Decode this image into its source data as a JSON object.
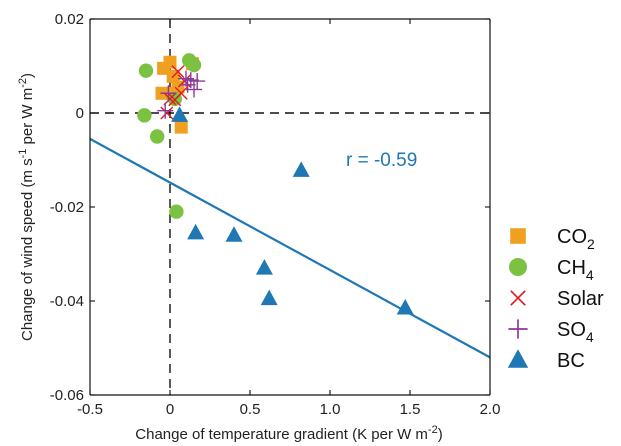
{
  "chart_data": {
    "type": "scatter",
    "xlabel": "Change of temperature gradient (K per W m",
    "xlabel_sup": "-2",
    "xlabel_end": ")",
    "ylabel": "Change of wind speed (m s",
    "ylabel_sup1": "-1",
    "ylabel_mid": " per W m",
    "ylabel_sup2": "-2",
    "ylabel_end": ")",
    "xlim": [
      -0.5,
      2.0
    ],
    "ylim": [
      -0.06,
      0.02
    ],
    "x_ticks": [
      -0.5,
      0,
      0.5,
      1.0,
      1.5,
      2.0
    ],
    "x_tick_labels": [
      "-0.5",
      "0",
      "0.5",
      "1.0",
      "1.5",
      "2.0"
    ],
    "y_ticks": [
      0.02,
      0,
      -0.02,
      -0.04,
      -0.06
    ],
    "y_tick_labels": [
      "0.02",
      "0",
      "-0.02",
      "-0.04",
      "-0.06"
    ],
    "grid": false,
    "reference_lines": {
      "x": 0,
      "y": 0,
      "style": "dashed"
    },
    "annotation": {
      "text": "r = -0.59",
      "x": 1.1,
      "y": -0.01,
      "color": "#1f77b4"
    },
    "fit_line": {
      "x": [
        -0.5,
        2.0
      ],
      "y": [
        -0.0055,
        -0.052
      ],
      "color": "#1f77b4"
    },
    "legend_position": "right",
    "series": [
      {
        "name": "CO",
        "name_sub": "2",
        "marker": "square",
        "color": "#f0a020",
        "points": [
          [
            -0.04,
            0.0095
          ],
          [
            0.0,
            0.0108
          ],
          [
            0.02,
            0.0078
          ],
          [
            0.05,
            0.0055
          ],
          [
            0.01,
            0.0042
          ],
          [
            -0.05,
            0.0042
          ],
          [
            0.07,
            -0.003
          ],
          [
            0.14,
            0.0105
          ]
        ]
      },
      {
        "name": "CH",
        "name_sub": "4",
        "marker": "circle",
        "color": "#7cc242",
        "points": [
          [
            -0.15,
            0.009
          ],
          [
            -0.16,
            -0.0005
          ],
          [
            -0.08,
            -0.005
          ],
          [
            0.12,
            0.0112
          ],
          [
            0.15,
            0.0102
          ],
          [
            0.03,
            0.003
          ],
          [
            0.04,
            -0.021
          ]
        ]
      },
      {
        "name": "Solar",
        "name_sub": "",
        "marker": "x",
        "color": "#e31a1c",
        "points": [
          [
            0.05,
            0.0088
          ],
          [
            0.0,
            0.003
          ],
          [
            0.03,
            0.0028
          ],
          [
            0.07,
            0.0042
          ],
          [
            0.09,
            0.0068
          ],
          [
            -0.02,
            0.0
          ]
        ]
      },
      {
        "name": "SO",
        "name_sub": "4",
        "marker": "plus",
        "color": "#8b3a96",
        "points": [
          [
            0.1,
            0.0073
          ],
          [
            0.13,
            0.007
          ],
          [
            0.17,
            0.0068
          ],
          [
            0.11,
            0.006
          ],
          [
            0.15,
            0.005
          ],
          [
            -0.01,
            0.0042
          ],
          [
            -0.03,
            0.0005
          ]
        ]
      },
      {
        "name": "BC",
        "name_sub": "",
        "marker": "triangle",
        "color": "#1f77b4",
        "points": [
          [
            0.06,
            -0.0005
          ],
          [
            0.82,
            -0.0122
          ],
          [
            0.16,
            -0.0255
          ],
          [
            0.4,
            -0.026
          ],
          [
            0.59,
            -0.033
          ],
          [
            0.62,
            -0.0395
          ],
          [
            1.47,
            -0.0415
          ]
        ]
      }
    ]
  }
}
